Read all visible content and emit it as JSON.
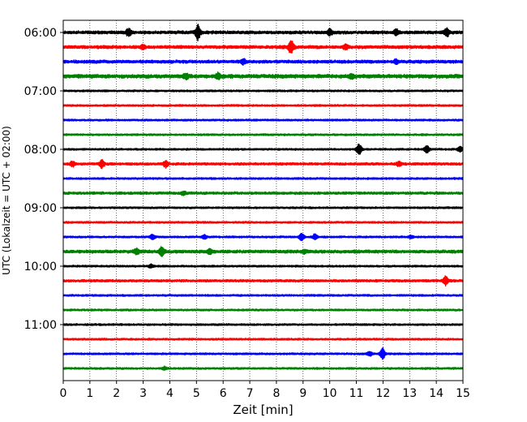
{
  "chart_data": {
    "type": "line",
    "subtype": "helicorder (seismogram drum plot)",
    "xlabel": "Zeit  [min]",
    "ylabel": "UTC (Lokalzeit = UTC + 02:00)",
    "xlim": [
      0,
      15
    ],
    "x_ticks": [
      0,
      1,
      2,
      3,
      4,
      5,
      6,
      7,
      8,
      9,
      10,
      11,
      12,
      13,
      14,
      15
    ],
    "x_tick_labels": [
      "0",
      "1",
      "2",
      "3",
      "4",
      "5",
      "6",
      "7",
      "8",
      "9",
      "10",
      "11",
      "12",
      "13",
      "14",
      "15"
    ],
    "y_tick_labels": [
      "06:00",
      "07:00",
      "08:00",
      "09:00",
      "10:00",
      "11:00"
    ],
    "minutes_per_line": 15,
    "grid": {
      "vertical_dotted": true
    },
    "colors": [
      "#000000",
      "#ff0000",
      "#0000ff",
      "#008000"
    ],
    "lines": [
      {
        "time": "06:00",
        "color": "#000000",
        "noise": 0.25,
        "events": [
          [
            2.45,
            0.7
          ],
          [
            5.05,
            1.5
          ],
          [
            10.0,
            0.6
          ],
          [
            12.5,
            0.5
          ],
          [
            14.4,
            0.8
          ]
        ]
      },
      {
        "time": "06:15",
        "color": "#ff0000",
        "noise": 0.25,
        "events": [
          [
            3.0,
            0.4
          ],
          [
            8.55,
            1.3
          ],
          [
            10.6,
            0.5
          ]
        ]
      },
      {
        "time": "06:30",
        "color": "#0000ff",
        "noise": 0.25,
        "events": [
          [
            6.75,
            0.5
          ],
          [
            12.5,
            0.4
          ]
        ]
      },
      {
        "time": "06:45",
        "color": "#008000",
        "noise": 0.3,
        "events": [
          [
            4.6,
            0.5
          ],
          [
            5.8,
            0.5
          ],
          [
            10.8,
            0.4
          ]
        ]
      },
      {
        "time": "07:00",
        "color": "#000000",
        "noise": 0.15,
        "events": []
      },
      {
        "time": "07:15",
        "color": "#ff0000",
        "noise": 0.15,
        "events": []
      },
      {
        "time": "07:30",
        "color": "#0000ff",
        "noise": 0.15,
        "events": []
      },
      {
        "time": "07:45",
        "color": "#008000",
        "noise": 0.15,
        "events": []
      },
      {
        "time": "08:00",
        "color": "#000000",
        "noise": 0.15,
        "events": [
          [
            11.1,
            1.1
          ],
          [
            13.65,
            0.8
          ],
          [
            14.9,
            0.5
          ]
        ]
      },
      {
        "time": "08:15",
        "color": "#ff0000",
        "noise": 0.2,
        "events": [
          [
            0.35,
            0.5
          ],
          [
            1.45,
            0.8
          ],
          [
            3.85,
            0.6
          ],
          [
            12.6,
            0.4
          ]
        ]
      },
      {
        "time": "08:30",
        "color": "#0000ff",
        "noise": 0.15,
        "events": []
      },
      {
        "time": "08:45",
        "color": "#008000",
        "noise": 0.2,
        "events": [
          [
            4.5,
            0.3
          ]
        ]
      },
      {
        "time": "09:00",
        "color": "#000000",
        "noise": 0.15,
        "events": []
      },
      {
        "time": "09:15",
        "color": "#ff0000",
        "noise": 0.15,
        "events": []
      },
      {
        "time": "09:30",
        "color": "#0000ff",
        "noise": 0.15,
        "events": [
          [
            3.35,
            0.5
          ],
          [
            5.3,
            0.4
          ],
          [
            8.95,
            0.7
          ],
          [
            9.45,
            0.5
          ],
          [
            13.05,
            0.3
          ]
        ]
      },
      {
        "time": "09:45",
        "color": "#008000",
        "noise": 0.25,
        "events": [
          [
            2.75,
            0.5
          ],
          [
            3.7,
            0.9
          ],
          [
            5.5,
            0.5
          ],
          [
            9.05,
            0.3
          ]
        ]
      },
      {
        "time": "10:00",
        "color": "#000000",
        "noise": 0.15,
        "events": [
          [
            3.3,
            0.3
          ]
        ]
      },
      {
        "time": "10:15",
        "color": "#ff0000",
        "noise": 0.2,
        "events": [
          [
            14.35,
            0.9
          ]
        ]
      },
      {
        "time": "10:30",
        "color": "#0000ff",
        "noise": 0.15,
        "events": []
      },
      {
        "time": "10:45",
        "color": "#008000",
        "noise": 0.15,
        "events": []
      },
      {
        "time": "11:00",
        "color": "#000000",
        "noise": 0.15,
        "events": []
      },
      {
        "time": "11:15",
        "color": "#ff0000",
        "noise": 0.15,
        "events": []
      },
      {
        "time": "11:30",
        "color": "#0000ff",
        "noise": 0.15,
        "events": [
          [
            11.5,
            0.4
          ],
          [
            11.98,
            1.1
          ]
        ]
      },
      {
        "time": "11:45",
        "color": "#008000",
        "noise": 0.15,
        "events": [
          [
            3.8,
            0.3
          ]
        ]
      }
    ]
  }
}
